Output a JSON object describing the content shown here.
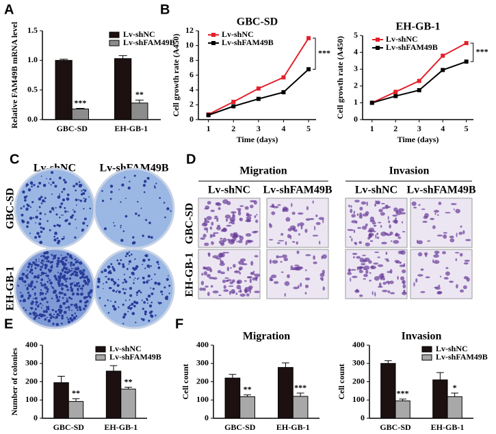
{
  "chart_data": [
    {
      "type": "bar",
      "panel": "A",
      "ylabel": "Relative FAM49B  mRNA level",
      "categories": [
        "GBC-SD",
        "EH-GB-1"
      ],
      "series": [
        {
          "name": "Lv-shNC",
          "color": "#1c1010",
          "values": [
            1.0,
            1.03
          ],
          "errors": [
            0.02,
            0.05
          ]
        },
        {
          "name": "Lv-shFAM49B",
          "color": "#8c8c8c",
          "values": [
            0.18,
            0.28
          ],
          "errors": [
            0.01,
            0.05
          ],
          "annotations": [
            "***",
            "**"
          ]
        }
      ],
      "ylim": [
        0,
        1.5
      ],
      "yticks": [
        {
          "value": 0,
          "label": "0.0"
        },
        0.5,
        {
          "value": 1,
          "label": "1.0"
        },
        1.5
      ],
      "legend": "upper right"
    },
    {
      "type": "line",
      "panel": "B",
      "title": "GBC-SD",
      "xlabel": "Time (days)",
      "ylabel": "Cell growth rate (A450)",
      "x": [
        1,
        2,
        3,
        4,
        5
      ],
      "series": [
        {
          "name": "Lv-shNC",
          "color": "#e3202a",
          "values": [
            0.7,
            2.4,
            4.2,
            5.7,
            11.0
          ]
        },
        {
          "name": "Lv-shFAM49B",
          "color": "#000000",
          "values": [
            0.6,
            1.8,
            2.8,
            3.7,
            6.8
          ]
        }
      ],
      "xlim": [
        0.6,
        5.3
      ],
      "xticks": [
        1,
        2,
        3,
        4,
        5
      ],
      "ylim": [
        0,
        12
      ],
      "yticks": [
        0,
        2,
        4,
        6,
        8,
        10,
        12
      ],
      "annotation": "***",
      "legend": "upper left"
    },
    {
      "type": "line",
      "title": "EH-GB-1",
      "xlabel": "Time (days)",
      "ylabel": "Cell growth rate (A450)",
      "x": [
        1,
        2,
        3,
        4,
        5
      ],
      "series": [
        {
          "name": "Lv-shNC",
          "color": "#e3202a",
          "values": [
            1.0,
            1.65,
            2.3,
            3.8,
            4.55
          ]
        },
        {
          "name": "Lv-shFAM49B",
          "color": "#000000",
          "values": [
            1.0,
            1.4,
            1.75,
            2.95,
            3.45
          ]
        }
      ],
      "xlim": [
        0.6,
        5.3
      ],
      "xticks": [
        1,
        2,
        3,
        4,
        5
      ],
      "ylim": [
        0,
        5
      ],
      "yticks": [
        0,
        1,
        2,
        3,
        4,
        5
      ],
      "annotation": "***",
      "legend": "upper left"
    },
    {
      "type": "bar",
      "panel": "E",
      "ylabel": "Number of colonies",
      "categories": [
        "GBC-SD",
        "EH-GB-1"
      ],
      "series": [
        {
          "name": "Lv-shNC",
          "color": "#1c1010",
          "values": [
            195,
            258
          ],
          "errors": [
            35,
            30
          ]
        },
        {
          "name": "Lv-shFAM49B",
          "color": "#a8a8a8",
          "values": [
            92,
            160
          ],
          "errors": [
            15,
            10
          ],
          "annotations": [
            "**",
            "**"
          ]
        }
      ],
      "ylim": [
        0,
        400
      ],
      "yticks": [
        0,
        100,
        200,
        300,
        400
      ],
      "legend": "upper right"
    },
    {
      "type": "bar",
      "panel": "F",
      "title": "Migration",
      "ylabel": "Cell count",
      "categories": [
        "GBC-SD",
        "EH-GB-1"
      ],
      "series": [
        {
          "name": "Lv-shNC",
          "color": "#1c1010",
          "values": [
            220,
            278
          ],
          "errors": [
            20,
            25
          ]
        },
        {
          "name": "Lv-shFAM49B",
          "color": "#a8a8a8",
          "values": [
            118,
            120
          ],
          "errors": [
            10,
            18
          ],
          "annotations": [
            "**",
            "***"
          ]
        }
      ],
      "ylim": [
        0,
        400
      ],
      "yticks": [
        0,
        100,
        200,
        300,
        400
      ]
    },
    {
      "type": "bar",
      "title": "Invasion",
      "ylabel": "Cell count",
      "categories": [
        "GBC-SD",
        "EH-GB-1"
      ],
      "series": [
        {
          "name": "Lv-shNC",
          "color": "#1c1010",
          "values": [
            300,
            210
          ],
          "errors": [
            15,
            40
          ]
        },
        {
          "name": "Lv-shFAM49B",
          "color": "#a8a8a8",
          "values": [
            95,
            118
          ],
          "errors": [
            10,
            20
          ],
          "annotations": [
            "***",
            "*"
          ]
        }
      ],
      "ylim": [
        0,
        400
      ],
      "yticks": [
        0,
        100,
        200,
        300,
        400
      ],
      "legend": "upper right"
    }
  ],
  "images": {
    "colony": {
      "panel": "C",
      "columns": [
        "Lv-shNC",
        "Lv-shFAM49B"
      ],
      "rows": [
        "GBC-SD",
        "EH-GB-1"
      ]
    },
    "transwell": {
      "panel": "D",
      "groups": [
        "Migration",
        "Invasion"
      ],
      "columns": [
        "Lv-shNC",
        "Lv-shFAM49B",
        "Lv-shNC",
        "Lv-shFAM49B"
      ],
      "rows": [
        "GBC-SD",
        "EH-GB-1"
      ]
    }
  }
}
